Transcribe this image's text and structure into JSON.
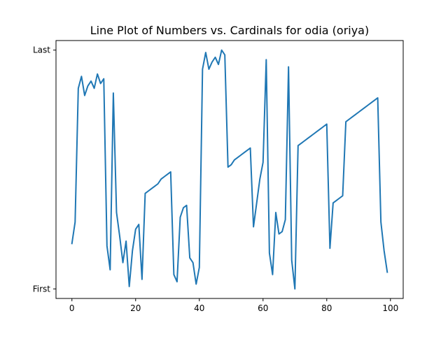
{
  "chart_data": {
    "type": "line",
    "title": "Line Plot of Numbers vs. Cardinals for odia (oriya)",
    "xlabel": "",
    "ylabel": "",
    "xlim": [
      -5,
      104
    ],
    "ylim": [
      -0.04,
      1.04
    ],
    "xticks": [
      0,
      20,
      40,
      60,
      80,
      100
    ],
    "yticks": [
      {
        "value": 0,
        "label": "First"
      },
      {
        "value": 1,
        "label": "Last"
      }
    ],
    "grid": false,
    "line_color": "#1f77b4",
    "x": [
      0,
      1,
      2,
      3,
      4,
      5,
      6,
      7,
      8,
      9,
      10,
      11,
      12,
      13,
      14,
      15,
      16,
      17,
      18,
      19,
      20,
      21,
      22,
      23,
      24,
      25,
      26,
      27,
      28,
      29,
      30,
      31,
      32,
      33,
      34,
      35,
      36,
      37,
      38,
      39,
      40,
      41,
      42,
      43,
      44,
      45,
      46,
      47,
      48,
      49,
      50,
      51,
      52,
      53,
      54,
      55,
      56,
      57,
      58,
      59,
      60,
      61,
      62,
      63,
      64,
      65,
      66,
      67,
      68,
      69,
      70,
      71,
      72,
      73,
      74,
      75,
      76,
      77,
      78,
      79,
      80,
      81,
      82,
      83,
      84,
      85,
      86,
      87,
      88,
      89,
      90,
      91,
      92,
      93,
      94,
      95,
      96,
      97,
      98,
      99
    ],
    "values": [
      0.19,
      0.28,
      0.84,
      0.89,
      0.81,
      0.85,
      0.87,
      0.84,
      0.9,
      0.86,
      0.88,
      0.18,
      0.08,
      0.82,
      0.32,
      0.22,
      0.11,
      0.2,
      0.01,
      0.16,
      0.25,
      0.27,
      0.04,
      0.4,
      0.41,
      0.42,
      0.43,
      0.44,
      0.46,
      0.47,
      0.48,
      0.49,
      0.06,
      0.03,
      0.3,
      0.34,
      0.35,
      0.13,
      0.11,
      0.02,
      0.09,
      0.92,
      0.99,
      0.92,
      0.95,
      0.97,
      0.94,
      1.0,
      0.98,
      0.51,
      0.52,
      0.54,
      0.55,
      0.56,
      0.57,
      0.58,
      0.59,
      0.26,
      0.36,
      0.46,
      0.53,
      0.96,
      0.15,
      0.06,
      0.32,
      0.23,
      0.24,
      0.29,
      0.93,
      0.12,
      0.0,
      0.6,
      0.61,
      0.62,
      0.63,
      0.64,
      0.65,
      0.66,
      0.67,
      0.68,
      0.69,
      0.17,
      0.36,
      0.37,
      0.38,
      0.39,
      0.7,
      0.71,
      0.72,
      0.73,
      0.74,
      0.75,
      0.76,
      0.77,
      0.78,
      0.79,
      0.8,
      0.28,
      0.16,
      0.07
    ]
  }
}
